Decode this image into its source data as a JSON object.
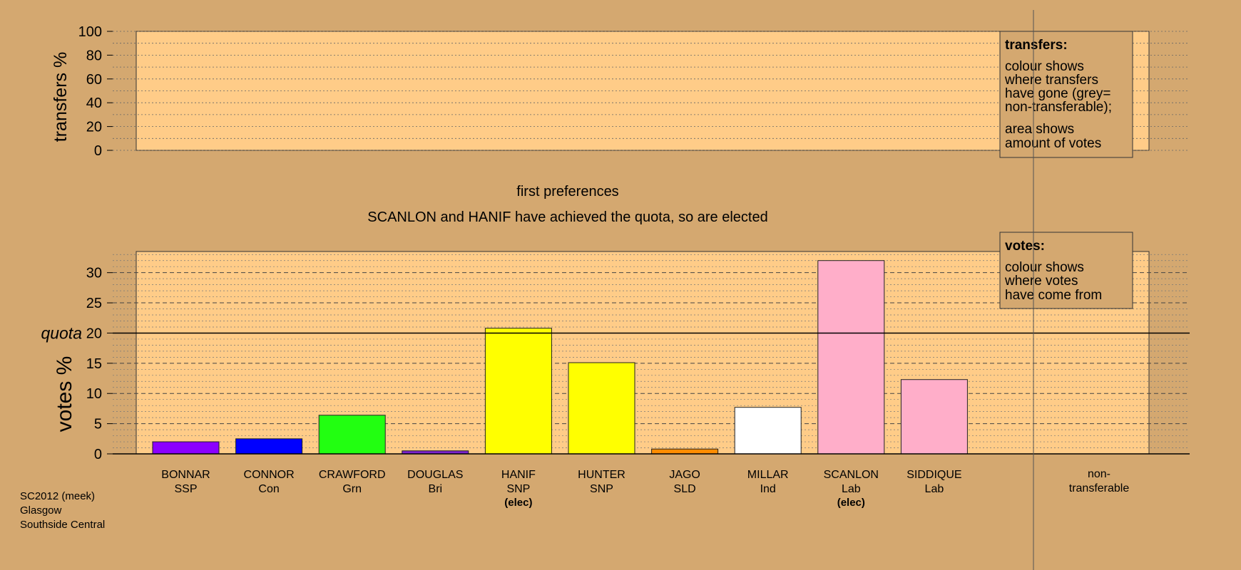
{
  "chart_data": {
    "type": "bar",
    "step_title": "first preferences",
    "status_message": "SCANLON and HANIF have achieved the quota, so are elected",
    "transfers_panel": {
      "ylabel": "transfers %",
      "ylim": [
        0,
        100
      ],
      "yticks": [
        "0",
        "20",
        "40",
        "60",
        "80",
        "100"
      ],
      "legend": {
        "title": "transfers:",
        "lines": [
          "colour shows",
          "where transfers",
          "have gone (grey=",
          "non-transferable);",
          "area shows",
          "amount of votes"
        ]
      }
    },
    "votes_panel": {
      "ylabel": "votes %",
      "ylim": [
        0,
        33.5
      ],
      "yticks": [
        "0",
        "5",
        "10",
        "15",
        "20",
        "25",
        "30"
      ],
      "quota": {
        "label": "quota",
        "value": 20
      },
      "legend": {
        "title": "votes:",
        "lines": [
          "colour shows",
          "where votes",
          "have come from"
        ]
      }
    },
    "candidates": [
      {
        "name": "BONNAR",
        "party": "SSP",
        "value": 2.0,
        "color": "#8b00ff",
        "elected": false
      },
      {
        "name": "CONNOR",
        "party": "Con",
        "value": 2.5,
        "color": "#0000ff",
        "elected": false
      },
      {
        "name": "CRAWFORD",
        "party": "Grn",
        "value": 6.4,
        "color": "#22ff11",
        "elected": false
      },
      {
        "name": "DOUGLAS",
        "party": "Bri",
        "value": 0.5,
        "color": "#7b22cc",
        "elected": false
      },
      {
        "name": "HANIF",
        "party": "SNP",
        "value": 20.8,
        "color": "#ffff00",
        "elected": true
      },
      {
        "name": "HUNTER",
        "party": "SNP",
        "value": 15.1,
        "color": "#ffff00",
        "elected": false
      },
      {
        "name": "JAGO",
        "party": "SLD",
        "value": 0.8,
        "color": "#ff8c00",
        "elected": false
      },
      {
        "name": "MILLAR",
        "party": "Ind",
        "value": 7.7,
        "color": "#ffffff",
        "elected": false
      },
      {
        "name": "SCANLON",
        "party": "Lab",
        "value": 32.0,
        "color": "#ffaec9",
        "elected": true
      },
      {
        "name": "SIDDIQUE",
        "party": "Lab",
        "value": 12.3,
        "color": "#ffaec9",
        "elected": false
      }
    ],
    "elected_tag": "(elec)",
    "non_transferable": {
      "line1": "non-",
      "line2": "transferable"
    }
  },
  "footer": {
    "line1": "SC2012 (meek)",
    "line2": "Glasgow",
    "line3": "Southside Central"
  }
}
